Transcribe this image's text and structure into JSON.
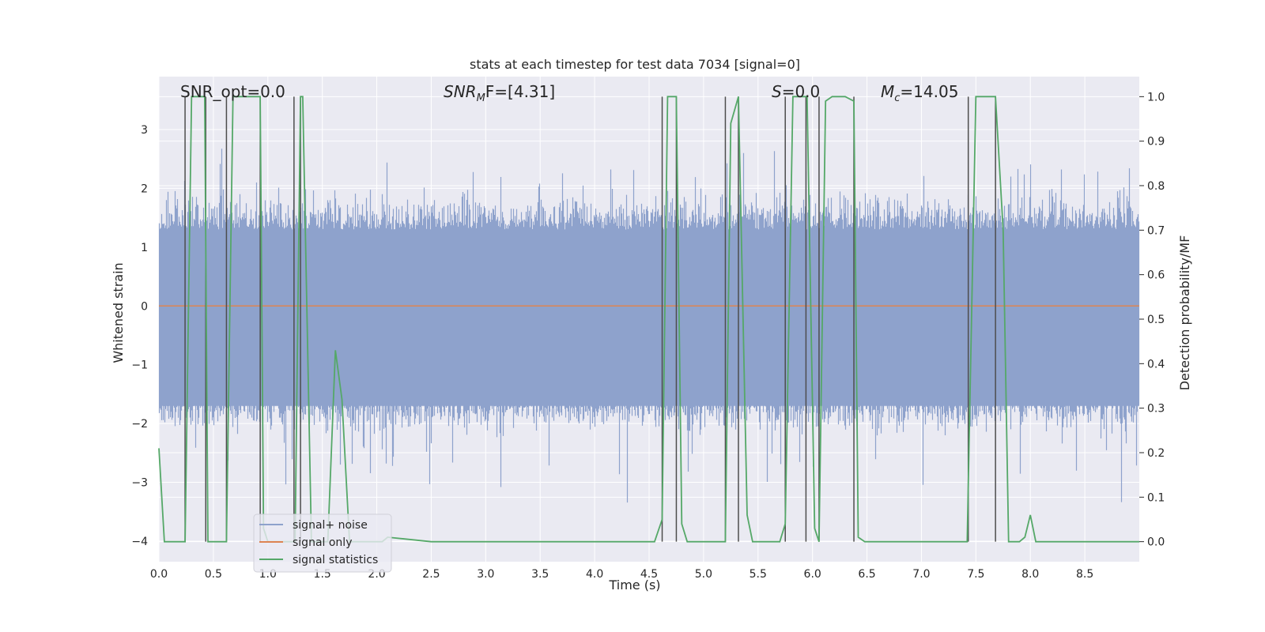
{
  "chart_data": {
    "type": "line",
    "title": "stats at each timestep for test data 7034 [signal=0]",
    "xlabel": "Time (s)",
    "ylabel": "Whitened strain",
    "y2label": "Detection probability/MF",
    "xlim": [
      0.0,
      9.0
    ],
    "ylim": [
      -4.35,
      3.9
    ],
    "y2lim": [
      -0.045,
      1.045
    ],
    "xticks": [
      "0.0",
      "0.5",
      "1.0",
      "1.5",
      "2.0",
      "2.5",
      "3.0",
      "3.5",
      "4.0",
      "4.5",
      "5.0",
      "5.5",
      "6.0",
      "6.5",
      "7.0",
      "7.5",
      "8.0",
      "8.5"
    ],
    "yticks": [
      "3",
      "2",
      "1",
      "0",
      "−1",
      "−2",
      "−3",
      "−4"
    ],
    "y2ticks": [
      "1.0",
      "0.9",
      "0.8",
      "0.7",
      "0.6",
      "0.5",
      "0.4",
      "0.3",
      "0.2",
      "0.1",
      "0.0"
    ],
    "grid": true,
    "legend_position": "lower-left",
    "colors": {
      "background": "#eaeaf2",
      "grid": "#ffffff",
      "signal_noise": "#8ea2cc",
      "signal_only": "#dd8452",
      "signal_statistics": "#55a868",
      "markers": "#4d4d4d"
    },
    "annotations": {
      "snr_opt": "SNR_opt=0.0",
      "snr_mf_main": "SNR",
      "snr_mf_sub": "M",
      "snr_mf_rest": "F=[4.31]",
      "s_main": "S",
      "s_rest": "=0.0",
      "mc_main": "M",
      "mc_sub": "c",
      "mc_rest": "=14.05"
    },
    "series": [
      {
        "name": "signal+ noise",
        "description": "whitened strain noise, approx gaussian, amplitude envelope +-1.7 with spikes to +-3.5",
        "approx_envelope": [
          -1.7,
          1.7
        ],
        "approx_extremes": [
          -3.65,
          3.3
        ]
      },
      {
        "name": "signal only",
        "x": [
          0.0,
          9.0
        ],
        "y": [
          0.0,
          0.0
        ]
      },
      {
        "name": "signal statistics",
        "axis": "right",
        "x": [
          0.0,
          0.05,
          0.1,
          0.2,
          0.24,
          0.3,
          0.35,
          0.42,
          0.45,
          0.5,
          0.6,
          0.62,
          0.68,
          0.75,
          0.85,
          0.93,
          0.96,
          1.0,
          1.05,
          1.1,
          1.2,
          1.25,
          1.3,
          1.32,
          1.4,
          1.5,
          1.55,
          1.62,
          1.68,
          1.75,
          1.8,
          2.0,
          2.05,
          2.1,
          2.5,
          2.7,
          3.0,
          3.05,
          3.5,
          3.95,
          4.55,
          4.62,
          4.67,
          4.75,
          4.8,
          4.85,
          4.95,
          5.0,
          5.2,
          5.25,
          5.32,
          5.4,
          5.45,
          5.58,
          5.62,
          5.7,
          5.75,
          5.82,
          5.9,
          5.95,
          6.02,
          6.06,
          6.12,
          6.18,
          6.3,
          6.38,
          6.42,
          6.48,
          6.7,
          7.0,
          7.42,
          7.5,
          7.55,
          7.68,
          7.75,
          7.8,
          7.85,
          7.9,
          7.95,
          8.0,
          8.05,
          8.5,
          9.0
        ],
        "y": [
          0.21,
          0.0,
          0.0,
          0.0,
          0.0,
          1.0,
          1.0,
          1.0,
          0.0,
          0.0,
          0.0,
          0.0,
          1.0,
          1.0,
          1.0,
          1.0,
          0.03,
          0.0,
          0.0,
          0.0,
          0.0,
          0.0,
          1.0,
          1.0,
          0.0,
          0.0,
          0.0,
          0.43,
          0.32,
          0.0,
          0.0,
          0.0,
          0.0,
          0.01,
          0.0,
          0.0,
          0.0,
          0.0,
          0.0,
          0.0,
          0.0,
          0.05,
          1.0,
          1.0,
          0.04,
          0.0,
          0.0,
          0.0,
          0.0,
          0.94,
          1.0,
          0.06,
          0.0,
          0.0,
          0.0,
          0.0,
          0.04,
          1.0,
          1.0,
          1.0,
          0.03,
          0.0,
          0.99,
          1.0,
          1.0,
          0.99,
          0.01,
          0.0,
          0.0,
          0.0,
          0.0,
          1.0,
          1.0,
          1.0,
          0.7,
          0.0,
          0.0,
          0.0,
          0.01,
          0.06,
          0.0,
          0.0,
          0.0
        ]
      }
    ],
    "marker_lines_x": [
      0.24,
      0.43,
      0.62,
      0.93,
      1.24,
      1.3,
      4.62,
      4.75,
      5.2,
      5.32,
      5.75,
      5.94,
      6.06,
      6.38,
      7.43,
      7.68
    ],
    "legend": {
      "items": [
        {
          "label": "signal+ noise",
          "color": "#8ea2cc"
        },
        {
          "label": "signal only",
          "color": "#dd8452"
        },
        {
          "label": "signal statistics",
          "color": "#55a868"
        }
      ]
    }
  }
}
